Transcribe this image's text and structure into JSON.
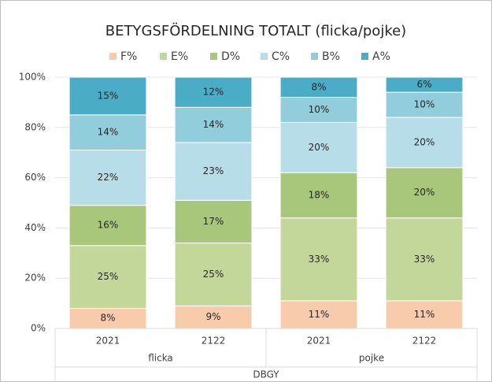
{
  "chart_data": {
    "type": "stacked_bar",
    "title": "BETYGSFÖRDELNING TOTALT (flicka/pojke)",
    "categories": [
      "2021",
      "2122",
      "2021",
      "2122"
    ],
    "groups": [
      "flicka",
      "pojke"
    ],
    "super_group": "DBGY",
    "series": [
      {
        "name": "F%",
        "color": "#f8cbad",
        "values": [
          8,
          9,
          11,
          11
        ],
        "value_labels": [
          "8%",
          "9%",
          "11%",
          "11%"
        ]
      },
      {
        "name": "E%",
        "color": "#c4d79b",
        "values": [
          25,
          25,
          33,
          33
        ],
        "value_labels": [
          "25%",
          "25%",
          "33%",
          "33%"
        ]
      },
      {
        "name": "D%",
        "color": "#a9c77a",
        "values": [
          16,
          17,
          18,
          20
        ],
        "value_labels": [
          "16%",
          "17%",
          "18%",
          "20%"
        ]
      },
      {
        "name": "C%",
        "color": "#b7dde8",
        "values": [
          22,
          23,
          20,
          20
        ],
        "value_labels": [
          "22%",
          "23%",
          "20%",
          "20%"
        ]
      },
      {
        "name": "B%",
        "color": "#92cddc",
        "values": [
          14,
          14,
          10,
          10
        ],
        "value_labels": [
          "14%",
          "14%",
          "10%",
          "10%"
        ]
      },
      {
        "name": "A%",
        "color": "#4bacc6",
        "values": [
          15,
          12,
          8,
          6
        ],
        "value_labels": [
          "15%",
          "12%",
          "8%",
          "6%"
        ]
      }
    ],
    "ylim": [
      0,
      100
    ],
    "yticks": [
      {
        "value": 0,
        "label": "0%"
      },
      {
        "value": 20,
        "label": "20%"
      },
      {
        "value": 40,
        "label": "40%"
      },
      {
        "value": 60,
        "label": "60%"
      },
      {
        "value": 80,
        "label": "80%"
      },
      {
        "value": 100,
        "label": "100%"
      }
    ],
    "legend": "top"
  }
}
